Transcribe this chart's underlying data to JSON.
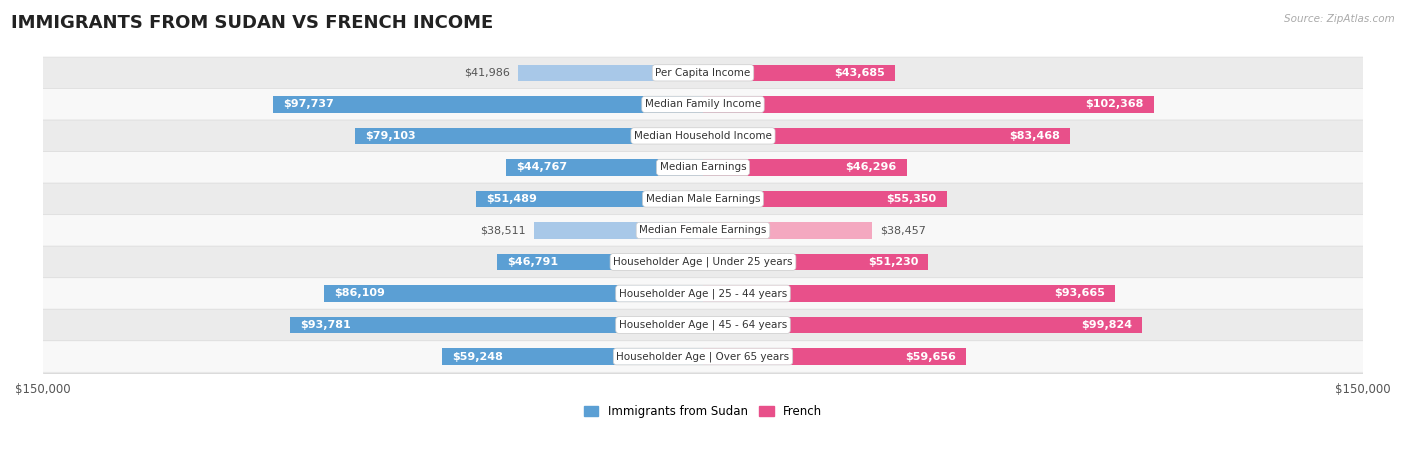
{
  "title": "IMMIGRANTS FROM SUDAN VS FRENCH INCOME",
  "source": "Source: ZipAtlas.com",
  "categories": [
    "Per Capita Income",
    "Median Family Income",
    "Median Household Income",
    "Median Earnings",
    "Median Male Earnings",
    "Median Female Earnings",
    "Householder Age | Under 25 years",
    "Householder Age | 25 - 44 years",
    "Householder Age | 45 - 64 years",
    "Householder Age | Over 65 years"
  ],
  "sudan_values": [
    41986,
    97737,
    79103,
    44767,
    51489,
    38511,
    46791,
    86109,
    93781,
    59248
  ],
  "french_values": [
    43685,
    102368,
    83468,
    46296,
    55350,
    38457,
    51230,
    93665,
    99824,
    59656
  ],
  "sudan_color_light": "#a8c8e8",
  "sudan_color_dark": "#5b9fd4",
  "french_color_light": "#f4a8c0",
  "french_color_dark": "#e8508a",
  "inside_label_threshold": 0.28,
  "max_val": 150000,
  "bar_height": 0.52,
  "row_bg_color": "#ebebeb",
  "row_alt_color": "#f8f8f8",
  "label_color_dark": "#555555",
  "title_fontsize": 13,
  "label_fontsize": 8.0,
  "cat_fontsize": 7.5,
  "legend_label_sudan": "Immigrants from Sudan",
  "legend_label_french": "French",
  "background_color": "#ffffff"
}
